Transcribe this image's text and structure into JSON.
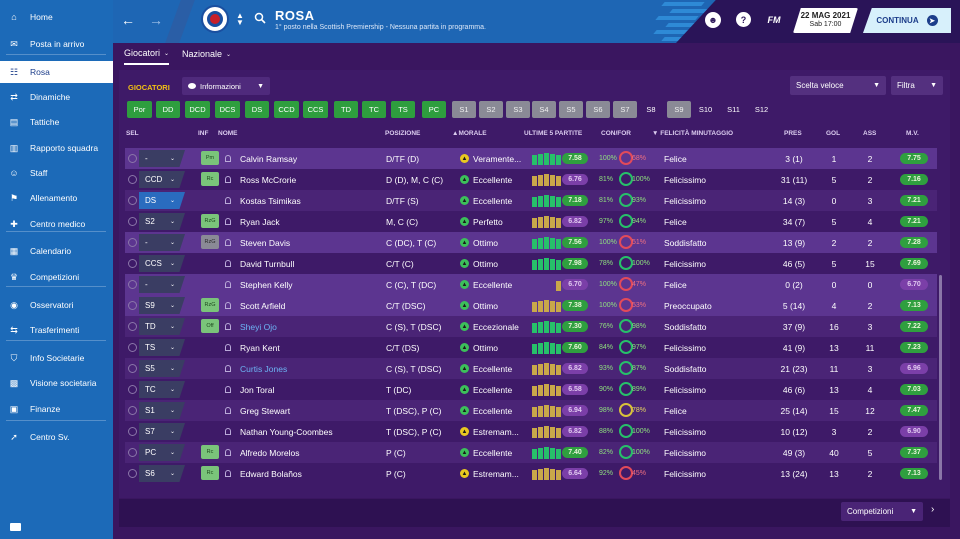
{
  "sidebar": {
    "items": [
      {
        "label": "Home",
        "icon": "home-icon"
      },
      {
        "label": "Posta in arrivo",
        "icon": "inbox-icon"
      },
      {
        "label": "Rosa",
        "icon": "squad-icon",
        "active": true
      },
      {
        "label": "Dinamiche",
        "icon": "dynamics-icon"
      },
      {
        "label": "Tattiche",
        "icon": "tactics-icon"
      },
      {
        "label": "Rapporto squadra",
        "icon": "report-icon"
      },
      {
        "label": "Staff",
        "icon": "staff-icon"
      },
      {
        "label": "Allenamento",
        "icon": "training-icon"
      },
      {
        "label": "Centro medico",
        "icon": "medical-icon"
      },
      {
        "label": "Calendario",
        "icon": "calendar-icon"
      },
      {
        "label": "Competizioni",
        "icon": "trophy-icon"
      },
      {
        "label": "Osservatori",
        "icon": "scouting-icon"
      },
      {
        "label": "Trasferimenti",
        "icon": "transfers-icon"
      },
      {
        "label": "Info Societarie",
        "icon": "club-info-icon"
      },
      {
        "label": "Visione societaria",
        "icon": "club-vision-icon"
      },
      {
        "label": "Finanze",
        "icon": "finances-icon"
      },
      {
        "label": "Centro Sv.",
        "icon": "development-icon"
      }
    ]
  },
  "header": {
    "title": "ROSA",
    "subtitle": "1° posto nella Scottish Premiership - Nessuna partita in programma.",
    "date": "22 MAG 2021",
    "day_time": "Sab 17:00",
    "fm_label": "FM",
    "help_label": "?",
    "continue_label": "CONTINUA"
  },
  "subnav": {
    "tabs": [
      "Giocatori",
      "Nazionale"
    ]
  },
  "toolbar": {
    "section_label": "GIOCATORI",
    "view_label": "Informazioni",
    "quick_pick_label": "Scelta veloce",
    "filter_label": "Filtra"
  },
  "position_chips": [
    {
      "label": "Por",
      "color": "#2e9e3e"
    },
    {
      "label": "DD",
      "color": "#2e9e3e"
    },
    {
      "label": "DCD",
      "color": "#2e9e3e"
    },
    {
      "label": "DCS",
      "color": "#2e9e3e"
    },
    {
      "label": "DS",
      "color": "#2e9e3e"
    },
    {
      "label": "CCD",
      "color": "#2e9e3e"
    },
    {
      "label": "CCS",
      "color": "#2e9e3e"
    },
    {
      "label": "TD",
      "color": "#2e9e3e"
    },
    {
      "label": "TC",
      "color": "#2e9e3e"
    },
    {
      "label": "TS",
      "color": "#2e9e3e"
    },
    {
      "label": "PC",
      "color": "#2e9e3e"
    },
    {
      "label": "S1",
      "color": "#8a8a96"
    },
    {
      "label": "S2",
      "color": "#8a8a96"
    },
    {
      "label": "S3",
      "color": "#8a8a96"
    },
    {
      "label": "S4",
      "color": "#8a8a96"
    },
    {
      "label": "S5",
      "color": "#8a8a96"
    },
    {
      "label": "S6",
      "color": "#8a8a96"
    },
    {
      "label": "S7",
      "color": "#8a8a96"
    },
    {
      "label": "S8",
      "color": "transparent"
    },
    {
      "label": "S9",
      "color": "#8a8a96"
    },
    {
      "label": "S10",
      "color": "transparent"
    },
    {
      "label": "S11",
      "color": "transparent"
    },
    {
      "label": "S12",
      "color": "transparent"
    }
  ],
  "table": {
    "headers": [
      "SEL",
      "INF",
      "NOME",
      "POSIZIONE",
      "MORALE",
      "ULTIME 5 PARTITE",
      "CON/FOR",
      "FELICITÀ MINUTAGGIO",
      "PRES",
      "GOL",
      "ASS",
      "M.V."
    ],
    "rows": [
      {
        "sel": "-",
        "sel_blue": false,
        "info": "Pm",
        "info_gray": false,
        "name": "Calvin Ramsay",
        "link": false,
        "pos": "D/TF (D)",
        "morale": "Veramente...",
        "morale_color": "#e8c820",
        "bars": [
          1,
          1,
          1,
          1,
          1
        ],
        "bar_color": "#27c06a",
        "rating": "7.58",
        "rating_good": true,
        "con": "100%",
        "for": "68%",
        "ring": "red",
        "happy": "Felice",
        "pres": "3 (1)",
        "gol": "1",
        "ass": "2",
        "mv": "7.75",
        "mv_good": true
      },
      {
        "sel": "CCD",
        "sel_blue": false,
        "info": "Rc",
        "info_gray": false,
        "name": "Ross McCrorie",
        "link": false,
        "pos": "D (D), M, C (C)",
        "morale": "Eccellente",
        "morale_color": "#3cc05a",
        "bars": [
          1,
          1,
          1,
          1,
          1
        ],
        "bar_color": "#c9a84a",
        "rating": "6.76",
        "rating_good": false,
        "con": "81%",
        "for": "100%",
        "ring": "green",
        "happy": "Felicissimo",
        "pres": "31 (11)",
        "gol": "5",
        "ass": "2",
        "mv": "7.16",
        "mv_good": true
      },
      {
        "sel": "DS",
        "sel_blue": true,
        "info": "",
        "info_gray": false,
        "name": "Kostas Tsimikas",
        "link": false,
        "pos": "D/TF (S)",
        "morale": "Eccellente",
        "morale_color": "#3cc05a",
        "bars": [
          1,
          1,
          1,
          1,
          1
        ],
        "bar_color": "#27c06a",
        "rating": "7.18",
        "rating_good": true,
        "con": "81%",
        "for": "93%",
        "ring": "green",
        "happy": "Felicissimo",
        "pres": "14 (3)",
        "gol": "0",
        "ass": "3",
        "mv": "7.21",
        "mv_good": true
      },
      {
        "sel": "S2",
        "sel_blue": false,
        "info": "RzG",
        "info_gray": false,
        "name": "Ryan Jack",
        "link": false,
        "pos": "M, C (C)",
        "morale": "Perfetto",
        "morale_color": "#3cc05a",
        "bars": [
          1,
          1,
          1,
          1,
          1
        ],
        "bar_color": "#c9a84a",
        "rating": "6.82",
        "rating_good": false,
        "con": "97%",
        "for": "94%",
        "ring": "green",
        "happy": "Felice",
        "pres": "34 (7)",
        "gol": "5",
        "ass": "4",
        "mv": "7.21",
        "mv_good": true
      },
      {
        "sel": "-",
        "sel_blue": false,
        "info": "RzG",
        "info_gray": true,
        "name": "Steven Davis",
        "link": false,
        "pos": "C (DC), T (C)",
        "morale": "Ottimo",
        "morale_color": "#3cc05a",
        "bars": [
          1,
          1,
          1,
          1,
          1
        ],
        "bar_color": "#27c06a",
        "rating": "7.56",
        "rating_good": true,
        "con": "100%",
        "for": "51%",
        "ring": "red",
        "happy": "Soddisfatto",
        "pres": "13 (9)",
        "gol": "2",
        "ass": "2",
        "mv": "7.28",
        "mv_good": true
      },
      {
        "sel": "CCS",
        "sel_blue": false,
        "info": "",
        "info_gray": false,
        "name": "David Turnbull",
        "link": false,
        "pos": "C/T (C)",
        "morale": "Ottimo",
        "morale_color": "#3cc05a",
        "bars": [
          1,
          1,
          1,
          1,
          1
        ],
        "bar_color": "#27c06a",
        "rating": "7.98",
        "rating_good": true,
        "con": "78%",
        "for": "100%",
        "ring": "green",
        "happy": "Felicissimo",
        "pres": "46 (5)",
        "gol": "5",
        "ass": "15",
        "mv": "7.69",
        "mv_good": true
      },
      {
        "sel": "-",
        "sel_blue": false,
        "info": "",
        "info_gray": false,
        "name": "Stephen Kelly",
        "link": false,
        "pos": "C (C), T (DC)",
        "morale": "Eccellente",
        "morale_color": "#3cc05a",
        "bars": [
          0,
          0,
          0,
          0,
          1
        ],
        "bar_color": "#c9a84a",
        "rating": "6.70",
        "rating_good": false,
        "con": "100%",
        "for": "47%",
        "ring": "red",
        "happy": "Felice",
        "pres": "0 (2)",
        "gol": "0",
        "ass": "0",
        "mv": "6.70",
        "mv_good": false
      },
      {
        "sel": "S9",
        "sel_blue": false,
        "info": "RzG",
        "info_gray": false,
        "name": "Scott Arfield",
        "link": false,
        "pos": "C/T (DSC)",
        "morale": "Ottimo",
        "morale_color": "#3cc05a",
        "bars": [
          1,
          1,
          1,
          1,
          1
        ],
        "bar_color": "#c9a84a",
        "rating": "7.38",
        "rating_good": true,
        "con": "100%",
        "for": "53%",
        "ring": "red",
        "happy": "Preoccupato",
        "pres": "5 (14)",
        "gol": "4",
        "ass": "2",
        "mv": "7.13",
        "mv_good": true
      },
      {
        "sel": "TD",
        "sel_blue": false,
        "info": "Off",
        "info_gray": false,
        "name": "Sheyi Ojo",
        "link": true,
        "pos": "C (S), T (DSC)",
        "morale": "Eccezionale",
        "morale_color": "#3cc05a",
        "bars": [
          1,
          1,
          1,
          1,
          1
        ],
        "bar_color": "#27c06a",
        "rating": "7.30",
        "rating_good": true,
        "con": "76%",
        "for": "98%",
        "ring": "green",
        "happy": "Soddisfatto",
        "pres": "37 (9)",
        "gol": "16",
        "ass": "3",
        "mv": "7.22",
        "mv_good": true
      },
      {
        "sel": "TS",
        "sel_blue": false,
        "info": "",
        "info_gray": false,
        "name": "Ryan Kent",
        "link": false,
        "pos": "C/T (DS)",
        "morale": "Ottimo",
        "morale_color": "#3cc05a",
        "bars": [
          1,
          1,
          1,
          1,
          1
        ],
        "bar_color": "#27c06a",
        "rating": "7.60",
        "rating_good": true,
        "con": "84%",
        "for": "97%",
        "ring": "green",
        "happy": "Felicissimo",
        "pres": "41 (9)",
        "gol": "13",
        "ass": "11",
        "mv": "7.23",
        "mv_good": true
      },
      {
        "sel": "S5",
        "sel_blue": false,
        "info": "",
        "info_gray": false,
        "name": "Curtis Jones",
        "link": true,
        "pos": "C (S), T (DSC)",
        "morale": "Eccellente",
        "morale_color": "#3cc05a",
        "bars": [
          1,
          1,
          1,
          1,
          1
        ],
        "bar_color": "#c9a84a",
        "rating": "6.82",
        "rating_good": false,
        "con": "93%",
        "for": "87%",
        "ring": "green",
        "happy": "Soddisfatto",
        "pres": "21 (23)",
        "gol": "11",
        "ass": "3",
        "mv": "6.96",
        "mv_good": false
      },
      {
        "sel": "TC",
        "sel_blue": false,
        "info": "",
        "info_gray": false,
        "name": "Jon Toral",
        "link": false,
        "pos": "T (DC)",
        "morale": "Eccellente",
        "morale_color": "#3cc05a",
        "bars": [
          1,
          1,
          1,
          1,
          1
        ],
        "bar_color": "#c9a84a",
        "rating": "6.58",
        "rating_good": false,
        "con": "90%",
        "for": "89%",
        "ring": "green",
        "happy": "Felicissimo",
        "pres": "46 (6)",
        "gol": "13",
        "ass": "4",
        "mv": "7.03",
        "mv_good": true
      },
      {
        "sel": "S1",
        "sel_blue": false,
        "info": "",
        "info_gray": false,
        "name": "Greg Stewart",
        "link": false,
        "pos": "T (DSC), P (C)",
        "morale": "Eccellente",
        "morale_color": "#3cc05a",
        "bars": [
          1,
          1,
          1,
          1,
          1
        ],
        "bar_color": "#c9a84a",
        "rating": "6.94",
        "rating_good": false,
        "con": "98%",
        "for": "78%",
        "ring": "yel",
        "happy": "Felice",
        "pres": "25 (14)",
        "gol": "15",
        "ass": "12",
        "mv": "7.47",
        "mv_good": true
      },
      {
        "sel": "S7",
        "sel_blue": false,
        "info": "",
        "info_gray": false,
        "name": "Nathan Young-Coombes",
        "link": false,
        "pos": "T (DSC), P (C)",
        "morale": "Estremam...",
        "morale_color": "#e8c820",
        "bars": [
          1,
          1,
          1,
          1,
          1
        ],
        "bar_color": "#c9a84a",
        "rating": "6.82",
        "rating_good": false,
        "con": "88%",
        "for": "100%",
        "ring": "green",
        "happy": "Felicissimo",
        "pres": "10 (12)",
        "gol": "3",
        "ass": "2",
        "mv": "6.90",
        "mv_good": false
      },
      {
        "sel": "PC",
        "sel_blue": false,
        "info": "Rc",
        "info_gray": false,
        "name": "Alfredo Morelos",
        "link": false,
        "pos": "P (C)",
        "morale": "Eccellente",
        "morale_color": "#3cc05a",
        "bars": [
          1,
          1,
          1,
          1,
          1
        ],
        "bar_color": "#27c06a",
        "rating": "7.40",
        "rating_good": true,
        "con": "82%",
        "for": "100%",
        "ring": "green",
        "happy": "Felicissimo",
        "pres": "49 (3)",
        "gol": "40",
        "ass": "5",
        "mv": "7.37",
        "mv_good": true
      },
      {
        "sel": "S6",
        "sel_blue": false,
        "info": "Rc",
        "info_gray": false,
        "name": "Edward Bolaños",
        "link": false,
        "pos": "P (C)",
        "morale": "Estremam...",
        "morale_color": "#e8c820",
        "bars": [
          1,
          1,
          1,
          1,
          1
        ],
        "bar_color": "#c9a84a",
        "rating": "6.64",
        "rating_good": false,
        "con": "92%",
        "for": "45%",
        "ring": "red",
        "happy": "Felicissimo",
        "pres": "13 (24)",
        "gol": "13",
        "ass": "2",
        "mv": "7.13",
        "mv_good": true
      }
    ]
  },
  "footer": {
    "competitions_label": "Competizioni"
  }
}
